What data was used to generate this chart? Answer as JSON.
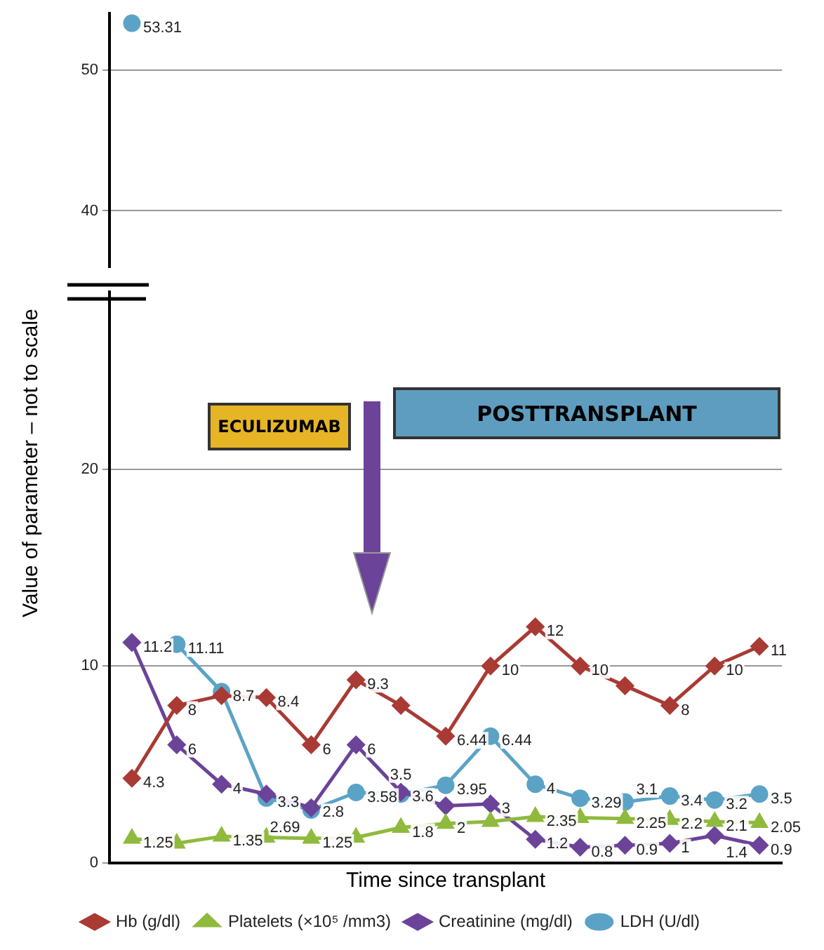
{
  "chart_data": [
    {
      "type": "line",
      "categories": [
        null,
        null,
        null,
        null,
        null,
        null,
        null,
        null,
        null,
        null,
        null,
        null,
        null,
        null,
        null
      ],
      "ylim": [
        36,
        54
      ],
      "yticks": [
        40,
        50
      ],
      "grid": "y",
      "legend": false,
      "tick_labels": "y",
      "series": [
        {
          "color": "#5ba3c6",
          "marker": "circle",
          "values": [
            53.31,
            null,
            null,
            null,
            null,
            null,
            null,
            null,
            null,
            null,
            null,
            null,
            null,
            null,
            null
          ],
          "value_labels": [
            "53.31",
            null,
            null,
            null,
            null,
            null,
            null,
            null,
            null,
            null,
            null,
            null,
            null,
            null,
            null
          ]
        }
      ]
    },
    {
      "type": "line",
      "categories": [
        null,
        null,
        null,
        null,
        null,
        null,
        null,
        null,
        null,
        null,
        null,
        null,
        null,
        null,
        null
      ],
      "ylim": [
        0,
        29
      ],
      "yticks": [
        0,
        10,
        20
      ],
      "grid": "y",
      "legend": "bottom",
      "tick_labels": "y",
      "xlabel": "Time since transplant",
      "ylabel": "Value of parameter – not to scale",
      "annotations": [
        "ECULIZUMAB",
        "POSTTRANSPLANT"
      ],
      "series": [
        {
          "name": "Hb (g/dl)",
          "color": "#a93a34",
          "marker": "diamond",
          "values": [
            4.3,
            8,
            8.5,
            8.4,
            6,
            9.3,
            8,
            6.44,
            10,
            12,
            10,
            9,
            8,
            10,
            11
          ],
          "value_labels": [
            "4.3",
            "8",
            null,
            "8.4",
            "6",
            "9.3",
            null,
            "6.44",
            "10",
            "12",
            "10",
            null,
            "8",
            "10",
            "11"
          ]
        },
        {
          "name": "Platelets (×10⁵ /mm3)",
          "color": "#8fba3e",
          "marker": "triangle",
          "values": [
            1.25,
            1,
            1.35,
            1.3,
            1.25,
            1.3,
            1.8,
            2,
            2.1,
            2.35,
            2.3,
            2.25,
            2.2,
            2.1,
            2.05
          ],
          "value_labels": [
            "1.25",
            null,
            "1.35",
            null,
            "1.25",
            null,
            "1.8",
            "2",
            null,
            "2.35",
            null,
            "2.25",
            "2.2",
            "2.1",
            "2.05"
          ]
        },
        {
          "name": "Creatinine (mg/dl)",
          "color": "#6b4399",
          "marker": "diamond",
          "values": [
            11.2,
            6,
            4,
            3.5,
            2.8,
            6,
            3.6,
            2.9,
            3,
            1.2,
            0.8,
            0.9,
            1,
            1.4,
            0.9
          ],
          "value_labels": [
            "11.2",
            "6",
            "4",
            null,
            "2.8",
            "6",
            "3.6",
            null,
            "3",
            "1.2",
            "0.8",
            "0.9",
            "1",
            "1.4",
            "0.9"
          ]
        },
        {
          "name": "LDH (U/dl)",
          "color": "#5ba3c6",
          "marker": "circle",
          "values": [
            null,
            11.11,
            8.7,
            3.3,
            2.69,
            3.58,
            3.5,
            3.95,
            6.44,
            4,
            3.29,
            3.1,
            3.4,
            3.2,
            3.5
          ],
          "value_labels": [
            null,
            "11.11",
            "8.7",
            "3.3",
            "2.69",
            "3.58",
            "3.5",
            "3.95",
            "6.44",
            "4",
            "3.29",
            "3.1",
            "3.4",
            "3.2",
            "3.5"
          ]
        }
      ]
    }
  ]
}
